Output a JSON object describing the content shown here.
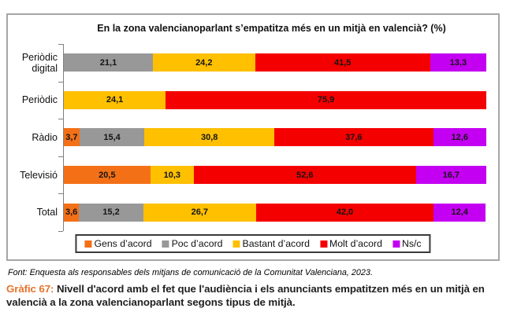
{
  "figure": {
    "title": "En la zona valencianoparlant s’empatitza més en un mitjà en valencià? (%)"
  },
  "chart_data": {
    "type": "bar",
    "orientation": "horizontal",
    "stacked": true,
    "unit": "%",
    "xlim": [
      0,
      100
    ],
    "grid": false,
    "legend_position": "bottom",
    "value_labels": "inside segments, comma decimal separator",
    "categories": [
      "Periòdic digital",
      "Periòdic",
      "Ràdio",
      "Televisió",
      "Total"
    ],
    "series": [
      {
        "name": "Gens d’acord",
        "color": "#F47016",
        "values": [
          0,
          0,
          3.7,
          20.5,
          3.6
        ]
      },
      {
        "name": "Poc d’acord",
        "color": "#989898",
        "values": [
          21.1,
          0,
          15.4,
          0,
          15.2
        ]
      },
      {
        "name": "Bastant d’acord",
        "color": "#FFC000",
        "values": [
          24.2,
          24.1,
          30.8,
          10.3,
          26.7
        ]
      },
      {
        "name": "Molt d’acord",
        "color": "#F40000",
        "values": [
          41.5,
          75.9,
          37.6,
          52.6,
          42.0
        ]
      },
      {
        "name": "Ns/c",
        "color": "#C400F2",
        "values": [
          13.3,
          0,
          12.6,
          16.7,
          12.4
        ]
      }
    ]
  },
  "footer": {
    "source": "Font: Enquesta als responsables dels mitjans de comunicació de la Comunitat Valenciana, 2023.",
    "caption_label": "Gràfic 67:",
    "caption_text": "Nivell d'acord amb el fet que l'audiència i els anunciants empatitzen més en un mitjà en valencià a la zona valencianoparlant segons tipus de mitjà.",
    "caption_label_color": "#E5732C"
  }
}
